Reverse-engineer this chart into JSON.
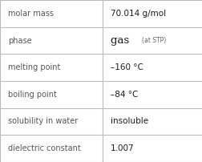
{
  "rows": [
    {
      "label": "molar mass",
      "value": "70.014 g/mol",
      "value_bold": false,
      "note": null
    },
    {
      "label": "phase",
      "value": "gas",
      "value_bold": false,
      "note": "(at STP)"
    },
    {
      "label": "melting point",
      "value": "–160 °C",
      "value_bold": false,
      "note": null
    },
    {
      "label": "boiling point",
      "value": "–84 °C",
      "value_bold": false,
      "note": null
    },
    {
      "label": "solubility in water",
      "value": "insoluble",
      "value_bold": false,
      "note": null
    },
    {
      "label": "dielectric constant",
      "value": "1.007",
      "value_bold": false,
      "note": null
    }
  ],
  "col_split": 0.505,
  "bg_color": "#ffffff",
  "border_color": "#bbbbbb",
  "label_color": "#555555",
  "value_color": "#1a1a1a",
  "note_color": "#666666",
  "label_fontsize": 7.0,
  "value_fontsize": 7.5,
  "phase_value_fontsize": 9.5,
  "note_fontsize": 5.5
}
